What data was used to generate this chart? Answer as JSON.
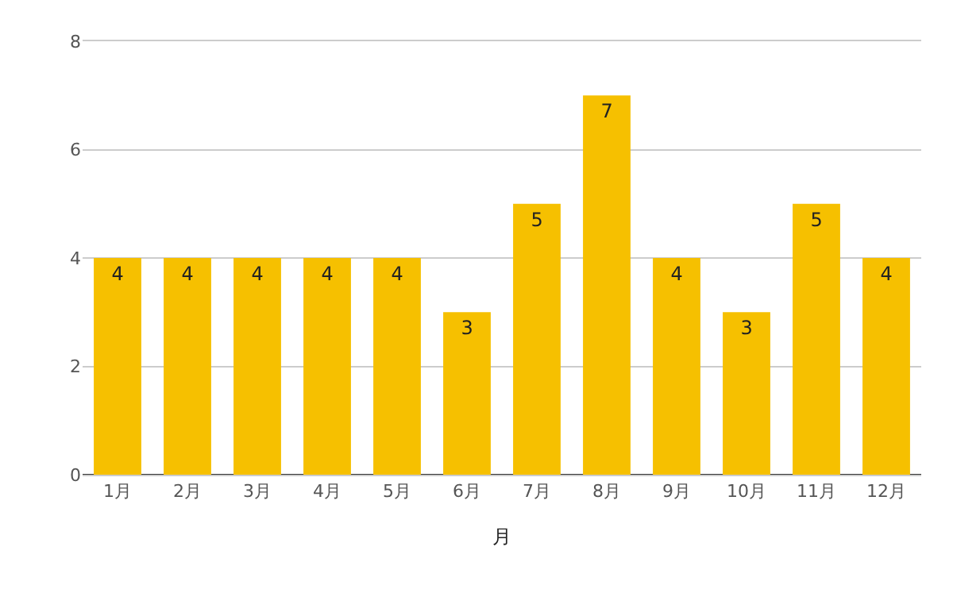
{
  "chart_data": {
    "type": "bar",
    "xlabel": "月",
    "categories": [
      "1月",
      "2月",
      "3月",
      "4月",
      "5月",
      "6月",
      "7月",
      "8月",
      "9月",
      "10月",
      "11月",
      "12月"
    ],
    "values": [
      4,
      4,
      4,
      4,
      4,
      3,
      5,
      7,
      4,
      3,
      5,
      4
    ],
    "color": "#f6c000",
    "ylim": [
      0,
      8
    ],
    "yticks": [
      0,
      2,
      4,
      6,
      8
    ],
    "grid": "y",
    "data_labels": true
  }
}
